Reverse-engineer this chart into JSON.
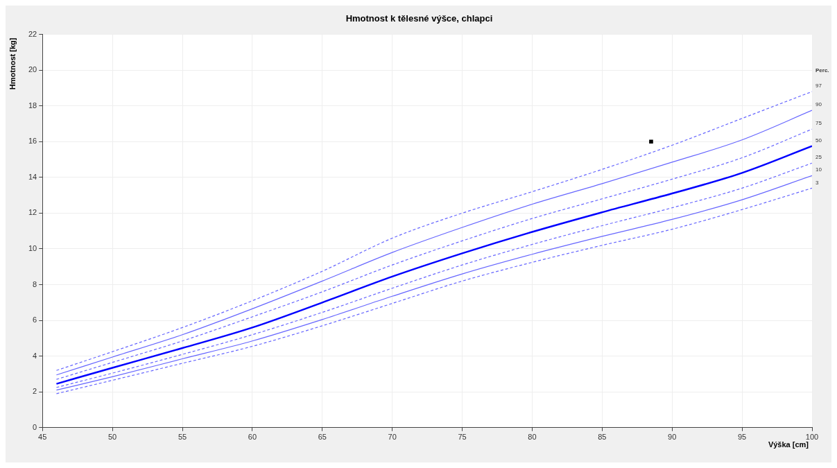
{
  "chart_data": {
    "type": "line",
    "title": "Hmotnost k tělesné výšce, chlapci",
    "xlabel": "Výška [cm]",
    "ylabel": "Hmotnost [kg]",
    "legend_title": "Perc.",
    "x": [
      46,
      50,
      55,
      60,
      65,
      70,
      75,
      80,
      85,
      90,
      95,
      100
    ],
    "series": [
      {
        "name": "97",
        "color": "#6666ff",
        "line_style": "dashed",
        "values": [
          3.2,
          4.25,
          5.6,
          7.1,
          8.75,
          10.6,
          12.0,
          13.2,
          14.45,
          15.8,
          17.3,
          18.8
        ]
      },
      {
        "name": "90",
        "color": "#6666ff",
        "line_style": "solid",
        "values": [
          2.95,
          3.95,
          5.2,
          6.65,
          8.2,
          9.8,
          11.2,
          12.5,
          13.65,
          14.85,
          16.1,
          17.75
        ]
      },
      {
        "name": "75",
        "color": "#6666ff",
        "line_style": "dashed",
        "values": [
          2.7,
          3.65,
          4.85,
          6.2,
          7.6,
          9.1,
          10.45,
          11.7,
          12.8,
          13.9,
          15.1,
          16.7
        ]
      },
      {
        "name": "50",
        "color": "#0000ff",
        "line_style": "solid",
        "values": [
          2.45,
          3.35,
          4.45,
          5.6,
          7.0,
          8.45,
          9.75,
          10.95,
          12.05,
          13.1,
          14.25,
          15.75
        ]
      },
      {
        "name": "25",
        "color": "#6666ff",
        "line_style": "dashed",
        "values": [
          2.25,
          3.05,
          4.1,
          5.2,
          6.45,
          7.8,
          9.1,
          10.25,
          11.3,
          12.3,
          13.4,
          14.8
        ]
      },
      {
        "name": "10",
        "color": "#6666ff",
        "line_style": "solid",
        "values": [
          2.1,
          2.85,
          3.85,
          4.85,
          6.05,
          7.35,
          8.6,
          9.7,
          10.7,
          11.65,
          12.75,
          14.1
        ]
      },
      {
        "name": "3",
        "color": "#6666ff",
        "line_style": "dashed",
        "values": [
          1.9,
          2.65,
          3.6,
          4.55,
          5.7,
          6.95,
          8.2,
          9.25,
          10.2,
          11.1,
          12.2,
          13.4
        ]
      },
      {
        "type": "scatter",
        "color": "#000000",
        "marker": "square",
        "x": [
          88.5
        ],
        "values": [
          16
        ]
      }
    ],
    "xlim": [
      45,
      100
    ],
    "xticks": [
      45,
      50,
      55,
      60,
      65,
      70,
      75,
      80,
      85,
      90,
      95,
      100
    ],
    "ylim": [
      0,
      22
    ],
    "yticks": [
      0,
      2,
      4,
      6,
      8,
      10,
      12,
      14,
      16,
      18,
      20,
      22
    ],
    "grid": true
  }
}
